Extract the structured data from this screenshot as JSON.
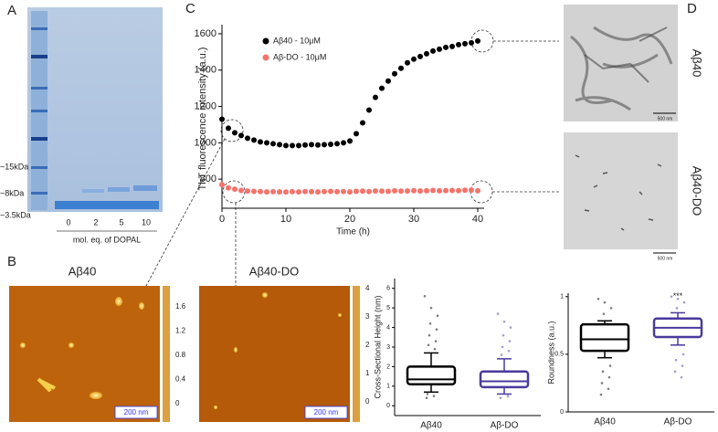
{
  "panel_labels": [
    "A",
    "B",
    "C",
    "D"
  ],
  "gel": {
    "size_labels": [
      "~15kDa",
      "~8kDa",
      "~3.5kDa"
    ],
    "lanes": [
      "0",
      "2",
      "5",
      "10"
    ],
    "lane_title": "mol. eq. of DOPAL"
  },
  "afm": [
    {
      "title": "Aβ40",
      "colorbar_ticks": [
        1.6,
        1.2,
        0.8,
        0.4,
        0
      ],
      "scale_bar": "200 nm"
    },
    {
      "title": "Aβ40-DO",
      "colorbar_ticks": [
        4,
        3,
        2,
        1,
        0
      ],
      "scale_bar": "200 nm"
    }
  ],
  "tem": [
    {
      "label": "Aβ40",
      "scale_bar": "500 nm"
    },
    {
      "label": "Aβ40-DO",
      "scale_bar": "500 nm"
    }
  ],
  "chart_data": [
    {
      "type": "scatter",
      "xlabel": "Time (h)",
      "ylabel": "ThT fluorescence intensity (a.u.)",
      "x": [
        0,
        1,
        2,
        3,
        4,
        5,
        6,
        7,
        8,
        9,
        10,
        11,
        12,
        13,
        14,
        15,
        16,
        17,
        18,
        19,
        20,
        21,
        22,
        23,
        24,
        25,
        26,
        27,
        28,
        29,
        30,
        31,
        32,
        33,
        34,
        35,
        36,
        37,
        38,
        39,
        40
      ],
      "series": [
        {
          "name": "Aβ40 - 10μM",
          "color": "#000000",
          "values": [
            1130,
            1080,
            1055,
            1040,
            1025,
            1015,
            1005,
            1000,
            995,
            990,
            985,
            985,
            985,
            988,
            990,
            988,
            990,
            992,
            995,
            1000,
            1010,
            1050,
            1110,
            1180,
            1250,
            1300,
            1340,
            1380,
            1410,
            1440,
            1460,
            1475,
            1490,
            1505,
            1515,
            1525,
            1530,
            1540,
            1545,
            1550,
            1560
          ]
        },
        {
          "name": "Aβ-DO - 10μM",
          "color": "#f4736b",
          "values": [
            770,
            752,
            745,
            738,
            735,
            733,
            732,
            730,
            731,
            730,
            729,
            731,
            730,
            732,
            731,
            730,
            732,
            733,
            731,
            732,
            730,
            733,
            734,
            732,
            735,
            734,
            733,
            736,
            734,
            735,
            737,
            735,
            736,
            738,
            736,
            737,
            738,
            737,
            739,
            740,
            736
          ]
        }
      ],
      "xlim": [
        0,
        41
      ],
      "ylim": [
        640,
        1650
      ],
      "xticks": [
        0,
        10,
        20,
        30,
        40
      ],
      "yticks": [
        800,
        1000,
        1200,
        1400,
        1600
      ],
      "legend": "upper left"
    },
    {
      "type": "box",
      "ylabel": "Cross-Sectional Height (nm)",
      "categories": [
        "Aβ40",
        "Aβ-DO"
      ],
      "ylim": [
        -0.5,
        6.5
      ],
      "yticks": [
        0,
        1,
        2,
        3,
        4,
        5,
        6
      ],
      "boxes": [
        {
          "color": "#000000",
          "whisker_low": 0.7,
          "q1": 1.1,
          "median": 1.35,
          "q3": 2.0,
          "whisker_high": 2.7,
          "points": [
            5.6,
            5.0,
            4.6,
            4.2,
            3.9,
            3.6,
            3.3,
            3.1,
            2.9,
            0.6,
            0.5,
            0.4
          ]
        },
        {
          "color": "#4b3a9c",
          "whisker_low": 0.6,
          "q1": 0.95,
          "median": 1.25,
          "q3": 1.75,
          "whisker_high": 2.4,
          "points": [
            4.7,
            4.3,
            4.0,
            3.6,
            3.3,
            3.0,
            2.8,
            2.6,
            0.5,
            0.4
          ]
        }
      ]
    },
    {
      "type": "box",
      "ylabel": "Roundness (a.u.)",
      "categories": [
        "Aβ40",
        "Aβ-DO"
      ],
      "ylim": [
        0,
        1.03
      ],
      "yticks": [
        0,
        0.5,
        1
      ],
      "annotation": {
        "text": "***",
        "index": 1
      },
      "boxes": [
        {
          "color": "#000000",
          "whisker_low": 0.47,
          "q1": 0.53,
          "median": 0.63,
          "q3": 0.76,
          "whisker_high": 0.79,
          "points": [
            0.98,
            0.95,
            0.9,
            0.85,
            0.4,
            0.35,
            0.3,
            0.25,
            0.2,
            0.15
          ]
        },
        {
          "color": "#4b3a9c",
          "whisker_low": 0.58,
          "q1": 0.65,
          "median": 0.73,
          "q3": 0.81,
          "whisker_high": 0.86,
          "points": [
            1.0,
            0.98,
            0.95,
            0.9,
            0.5,
            0.45,
            0.4,
            0.35,
            0.3
          ]
        }
      ]
    }
  ]
}
